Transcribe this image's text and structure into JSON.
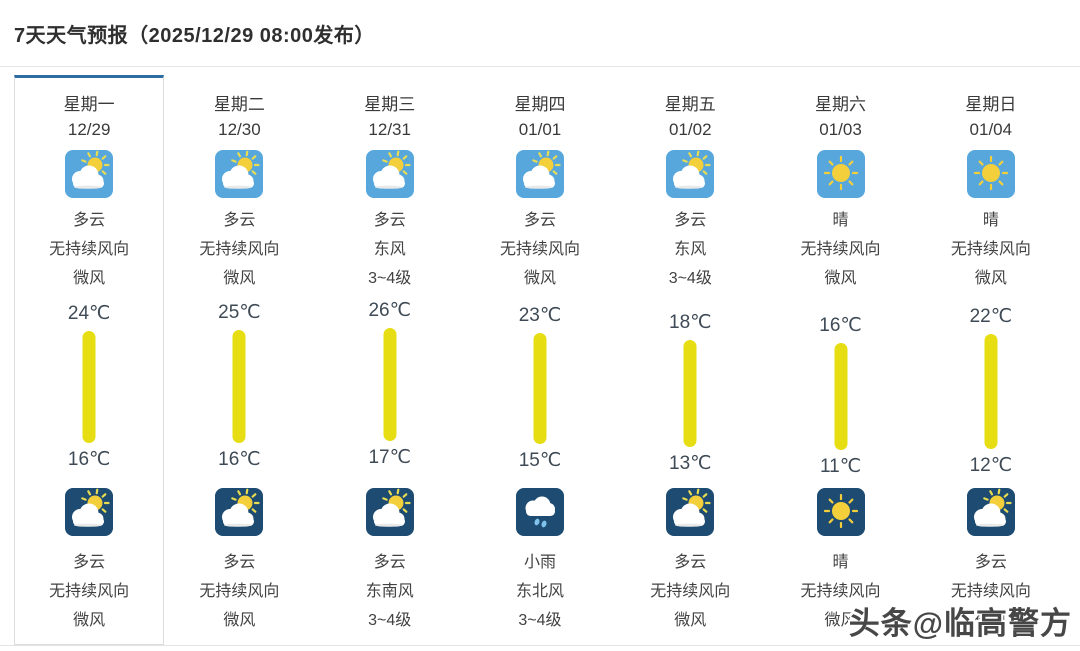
{
  "header": {
    "title": "7天天气预报（2025/12/29 08:00发布）"
  },
  "forecast": {
    "temperature_unit": "℃",
    "scale": {
      "max_high": 26,
      "min_low": 11
    },
    "days": [
      {
        "weekday": "星期一",
        "date": "12/29",
        "selected": true,
        "day": {
          "icon": "partly-cloudy",
          "condition": "多云",
          "wind_direction": "无持续风向",
          "wind_level": "微风"
        },
        "high": 24,
        "low": 16,
        "night": {
          "icon": "partly-cloudy",
          "condition": "多云",
          "wind_direction": "无持续风向",
          "wind_level": "微风"
        }
      },
      {
        "weekday": "星期二",
        "date": "12/30",
        "selected": false,
        "day": {
          "icon": "partly-cloudy",
          "condition": "多云",
          "wind_direction": "无持续风向",
          "wind_level": "微风"
        },
        "high": 25,
        "low": 16,
        "night": {
          "icon": "partly-cloudy",
          "condition": "多云",
          "wind_direction": "无持续风向",
          "wind_level": "微风"
        }
      },
      {
        "weekday": "星期三",
        "date": "12/31",
        "selected": false,
        "day": {
          "icon": "partly-cloudy",
          "condition": "多云",
          "wind_direction": "东风",
          "wind_level": "3~4级"
        },
        "high": 26,
        "low": 17,
        "night": {
          "icon": "partly-cloudy",
          "condition": "多云",
          "wind_direction": "东南风",
          "wind_level": "3~4级"
        }
      },
      {
        "weekday": "星期四",
        "date": "01/01",
        "selected": false,
        "day": {
          "icon": "partly-cloudy",
          "condition": "多云",
          "wind_direction": "无持续风向",
          "wind_level": "微风"
        },
        "high": 23,
        "low": 15,
        "night": {
          "icon": "light-rain",
          "condition": "小雨",
          "wind_direction": "东北风",
          "wind_level": "3~4级"
        }
      },
      {
        "weekday": "星期五",
        "date": "01/02",
        "selected": false,
        "day": {
          "icon": "partly-cloudy",
          "condition": "多云",
          "wind_direction": "东风",
          "wind_level": "3~4级"
        },
        "high": 18,
        "low": 13,
        "night": {
          "icon": "partly-cloudy",
          "condition": "多云",
          "wind_direction": "无持续风向",
          "wind_level": "微风"
        }
      },
      {
        "weekday": "星期六",
        "date": "01/03",
        "selected": false,
        "day": {
          "icon": "sunny",
          "condition": "晴",
          "wind_direction": "无持续风向",
          "wind_level": "微风"
        },
        "high": 16,
        "low": 11,
        "night": {
          "icon": "sunny",
          "condition": "晴",
          "wind_direction": "无持续风向",
          "wind_level": "微风"
        }
      },
      {
        "weekday": "星期日",
        "date": "01/04",
        "selected": false,
        "day": {
          "icon": "sunny",
          "condition": "晴",
          "wind_direction": "无持续风向",
          "wind_level": "微风"
        },
        "high": 22,
        "low": 12,
        "night": {
          "icon": "partly-cloudy",
          "condition": "多云",
          "wind_direction": "无持续风向",
          "wind_level": "微风"
        }
      }
    ]
  },
  "watermark": {
    "text": "头条@临高警方"
  },
  "colors": {
    "day_icon_bg": "#57a7dd",
    "night_icon_bg": "#1d4b72",
    "temp_bar": "#e6de12",
    "selected_top_border": "#2e6da4",
    "sun": "#f3cf3b",
    "rain_drop": "#7fc2ec"
  }
}
